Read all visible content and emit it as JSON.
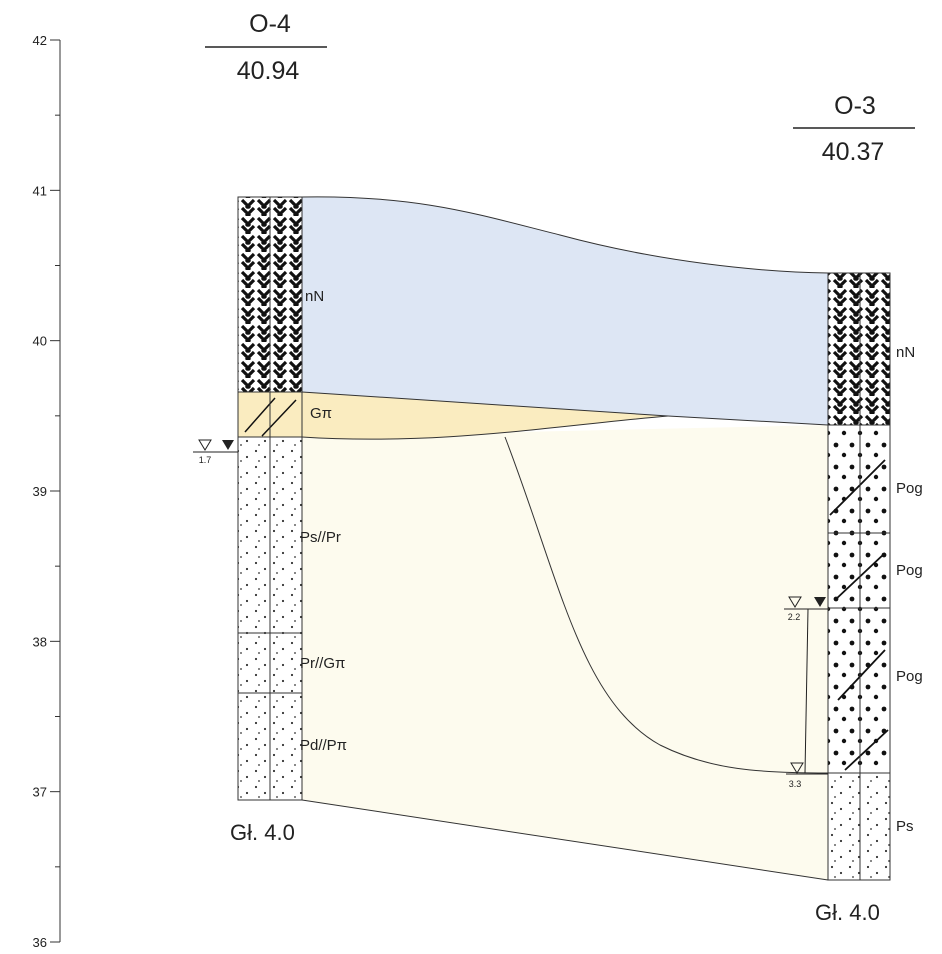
{
  "axis": {
    "ticks": [
      "42",
      "41",
      "40",
      "39",
      "38",
      "37",
      "36"
    ]
  },
  "boreholes": [
    {
      "name": "O-4",
      "elevation": "40.94",
      "layers": [
        "nN",
        "Gπ",
        "Ps//Pr",
        "Pr//Gπ",
        "Pd//Pπ"
      ],
      "water_levels": [
        "1.7"
      ],
      "depth": "Gł. 4.0"
    },
    {
      "name": "O-3",
      "elevation": "40.37",
      "layers": [
        "nN",
        "Pog",
        "Pog",
        "Pog",
        "Ps"
      ],
      "water_levels": [
        "2.2",
        "3.3"
      ],
      "depth": "Gł. 4.0"
    }
  ]
}
